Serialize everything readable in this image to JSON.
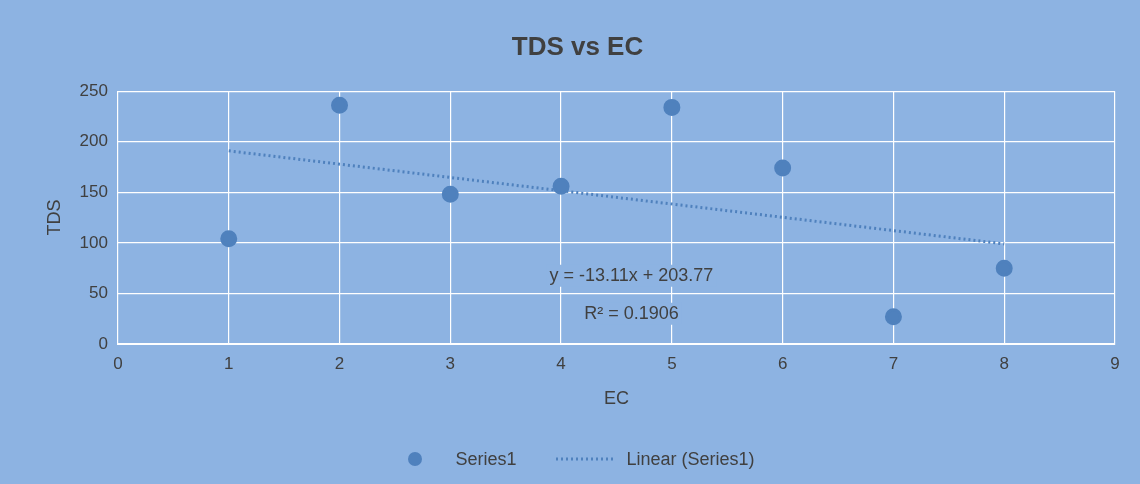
{
  "chart_data": {
    "type": "scatter",
    "title": "TDS vs EC",
    "xlabel": "EC",
    "ylabel": "TDS",
    "xlim": [
      0,
      9
    ],
    "xticks": [
      0,
      1,
      2,
      3,
      4,
      5,
      6,
      7,
      8,
      9
    ],
    "ylim": [
      0,
      250
    ],
    "yticks": [
      0,
      50,
      100,
      150,
      200,
      250
    ],
    "grid": true,
    "legend": "bottom",
    "marker": "circle",
    "series": [
      {
        "name": "Series1",
        "color": "#4f81bd",
        "x": [
          1,
          2,
          3,
          4,
          5,
          6,
          7,
          8
        ],
        "values": [
          104,
          236,
          148,
          156,
          234,
          174,
          27,
          75
        ]
      },
      {
        "name": "Linear (Series1)",
        "type": "line",
        "color": "#4f81bd",
        "marker": "none",
        "line_style": "dotted",
        "x": [
          1,
          8
        ],
        "values": [
          191,
          99
        ]
      }
    ],
    "annotations": [
      "y = -13.11x + 203.77",
      "R² = 0.1906"
    ]
  }
}
